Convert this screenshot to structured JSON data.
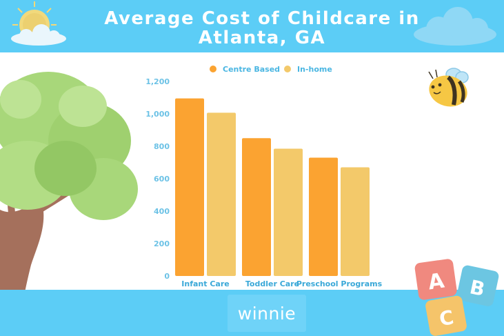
{
  "title_lines": [
    "Average Cost of Childcare in",
    "Atlanta, GA"
  ],
  "logo_text": "winnie",
  "colors": {
    "band": "#5ccdf6",
    "centre_based": "#fba331",
    "in_home": "#f3c96a"
  },
  "decorations": [
    "sun-icon",
    "cloud-icon",
    "tree-illustration",
    "bee-icon",
    "abc-blocks"
  ],
  "blocks": [
    "A",
    "B",
    "C"
  ],
  "chart_data": {
    "type": "bar",
    "title": "Average Cost of Childcare in Atlanta, GA",
    "categories": [
      "Infant Care",
      "Toddler Care",
      "Preschool Programs"
    ],
    "series": [
      {
        "name": "Centre Based",
        "values": [
          1095,
          850,
          730
        ]
      },
      {
        "name": "In-home",
        "values": [
          1007,
          785,
          670
        ]
      }
    ],
    "ylim": [
      0,
      1200
    ],
    "yticks": [
      0,
      200,
      400,
      600,
      800,
      1000,
      1200
    ],
    "ytick_labels": [
      "0",
      "200",
      "400",
      "600",
      "800",
      "1,000",
      "1,200"
    ],
    "grid": false,
    "legend_position": "top"
  }
}
